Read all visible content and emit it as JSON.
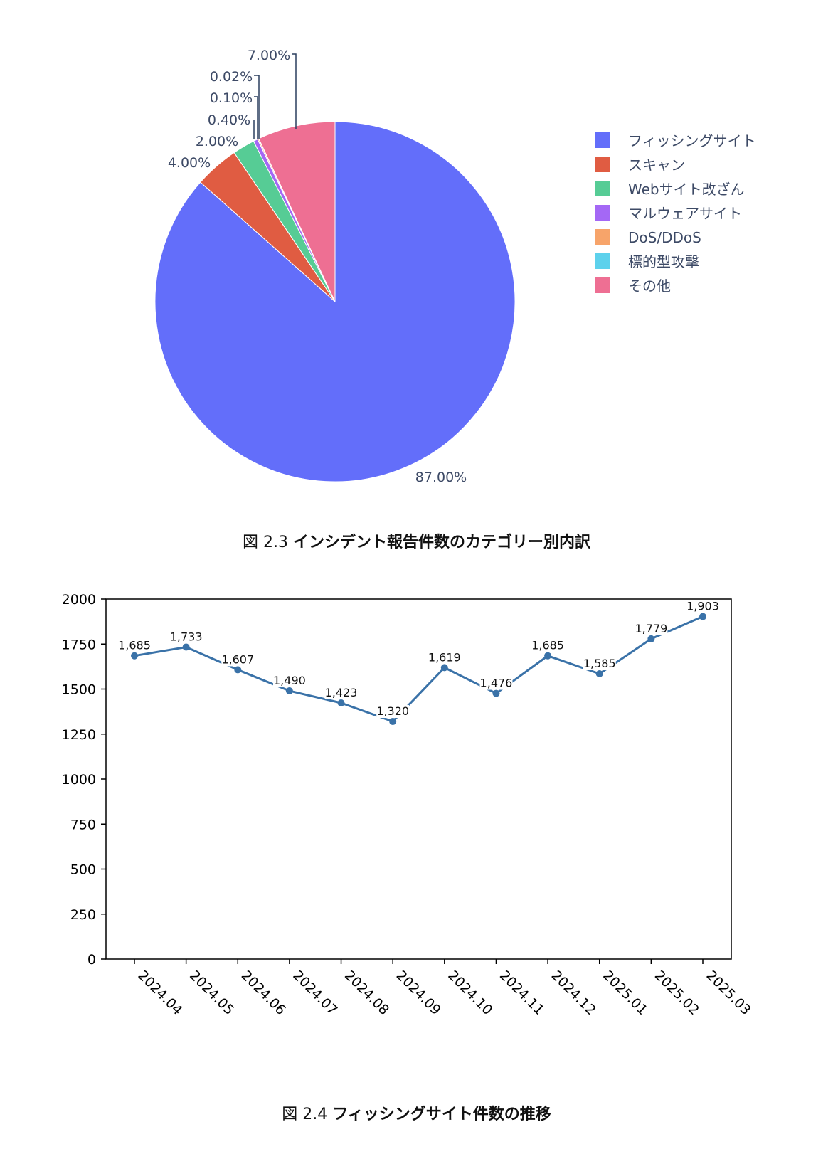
{
  "chart_data": [
    {
      "type": "pie",
      "categories": [
        "フィッシングサイト",
        "スキャン",
        "Webサイト改ざん",
        "マルウェアサイト",
        "DoS/DDoS",
        "標的型攻撃",
        "その他"
      ],
      "values": [
        87.0,
        4.0,
        2.0,
        0.4,
        0.1,
        0.02,
        7.0
      ],
      "value_labels": [
        "87.00%",
        "4.00%",
        "2.00%",
        "0.40%",
        "0.10%",
        "0.02%",
        "7.00%"
      ],
      "colors": [
        "#636efa",
        "#e05c42",
        "#56cc95",
        "#a468f5",
        "#f7a46a",
        "#5dd1ec",
        "#ee6f93"
      ],
      "legend_position": "right"
    },
    {
      "type": "line",
      "categories": [
        "2024.04",
        "2024.05",
        "2024.06",
        "2024.07",
        "2024.08",
        "2024.09",
        "2024.10",
        "2024.11",
        "2024.12",
        "2025.01",
        "2025.02",
        "2025.03"
      ],
      "values": [
        1685,
        1733,
        1607,
        1490,
        1423,
        1320,
        1619,
        1476,
        1685,
        1585,
        1779,
        1903
      ],
      "value_labels": [
        "1,685",
        "1,733",
        "1,607",
        "1,490",
        "1,423",
        "1,320",
        "1,619",
        "1,476",
        "1,685",
        "1,585",
        "1,779",
        "1,903"
      ],
      "ylim": [
        0,
        2000
      ],
      "yticks": [
        "0",
        "250",
        "500",
        "750",
        "1000",
        "1250",
        "1500",
        "1750",
        "2000"
      ],
      "line_color": "#3a72a8",
      "grid": false
    }
  ],
  "captions": {
    "pie": {
      "number": "図 2.3",
      "text": "インシデント報告件数のカテゴリー別内訳"
    },
    "line": {
      "number": "図 2.4",
      "text": "フィッシングサイト件数の推移"
    }
  }
}
